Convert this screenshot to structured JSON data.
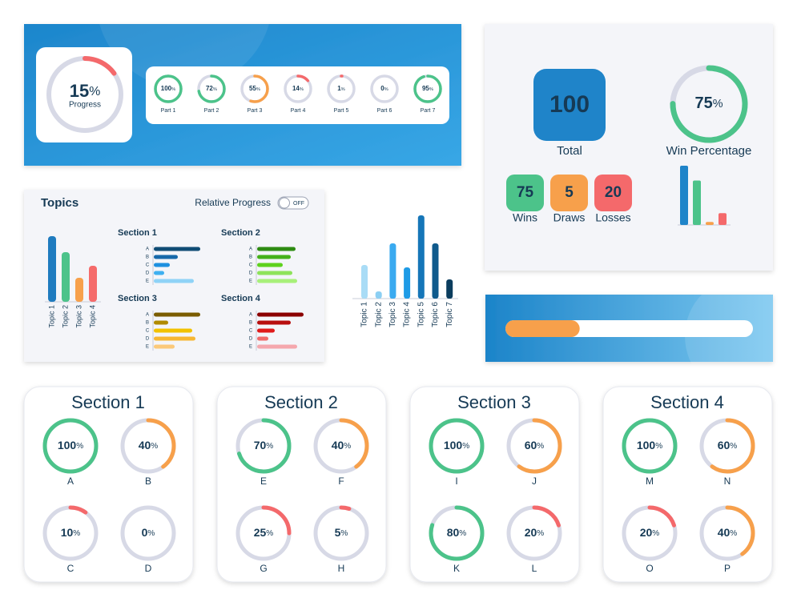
{
  "unit": "%",
  "progress_banner": {
    "overall": {
      "value": 15,
      "label": "Progress",
      "color": "#f4696b"
    },
    "parts": [
      {
        "label": "Part 1",
        "value": 100,
        "color": "#4cc38a"
      },
      {
        "label": "Part 2",
        "value": 72,
        "color": "#4cc38a"
      },
      {
        "label": "Part 3",
        "value": 55,
        "color": "#f7a04b"
      },
      {
        "label": "Part 4",
        "value": 14,
        "color": "#f4696b"
      },
      {
        "label": "Part 5",
        "value": 1,
        "color": "#f4696b"
      },
      {
        "label": "Part 6",
        "value": 0,
        "color": "#f4696b"
      },
      {
        "label": "Part 7",
        "value": 95,
        "color": "#4cc38a"
      }
    ]
  },
  "summary": {
    "total": {
      "value": 100,
      "label": "Total",
      "color": "#1f84c9"
    },
    "win_percentage": {
      "value": 75,
      "label": "Win Percentage",
      "color": "#4cc38a"
    },
    "results": [
      {
        "label": "Wins",
        "value": 75,
        "color": "#4cc38a"
      },
      {
        "label": "Draws",
        "value": 5,
        "color": "#f7a04b"
      },
      {
        "label": "Losses",
        "value": 20,
        "color": "#f4696b"
      }
    ]
  },
  "topics_panel": {
    "title": "Topics",
    "toggle_label": "Relative Progress",
    "toggle_state": "OFF",
    "topics": {
      "categories": [
        "Topic 1",
        "Topic 2",
        "Topic 3",
        "Topic 4"
      ],
      "values": [
        82,
        62,
        30,
        45
      ],
      "colors": [
        "#1f7bbf",
        "#4cc38a",
        "#f7a04b",
        "#f56b6b"
      ]
    },
    "sections": [
      {
        "title": "Section 1",
        "categories": [
          "A",
          "B",
          "C",
          "D",
          "E"
        ],
        "values": [
          58,
          30,
          20,
          13,
          50
        ],
        "colors": [
          "#0f4c75",
          "#1769aa",
          "#1e90e0",
          "#3fb0f0",
          "#8fd3f7"
        ]
      },
      {
        "title": "Section 2",
        "categories": [
          "A",
          "B",
          "C",
          "D",
          "E"
        ],
        "values": [
          48,
          42,
          32,
          44,
          50
        ],
        "colors": [
          "#2e8b12",
          "#45b21a",
          "#5fd21f",
          "#8ee35a",
          "#a8f07a"
        ]
      },
      {
        "title": "Section 3",
        "categories": [
          "A",
          "B",
          "C",
          "D",
          "E"
        ],
        "values": [
          58,
          18,
          48,
          52,
          26
        ],
        "colors": [
          "#7a5c00",
          "#b08a00",
          "#f2c200",
          "#f7b733",
          "#fbc97a"
        ]
      },
      {
        "title": "Section 4",
        "categories": [
          "A",
          "B",
          "C",
          "D",
          "E"
        ],
        "values": [
          58,
          42,
          22,
          14,
          50
        ],
        "colors": [
          "#8b0000",
          "#b80f0f",
          "#e01b1b",
          "#f06a6a",
          "#f5a7ad"
        ]
      }
    ]
  },
  "topic_chart": {
    "categories": [
      "Topic 1",
      "Topic 2",
      "Topic 3",
      "Topic 4",
      "Topic 5",
      "Topic 6",
      "Topic 7"
    ],
    "values": [
      42,
      9,
      69,
      39,
      104,
      69,
      24
    ],
    "colors": [
      "#a9dcf6",
      "#8ccff3",
      "#3aaaf0",
      "#1e9be6",
      "#1676b8",
      "#0f5a8c",
      "#0b3d5e"
    ]
  },
  "progress_bar": {
    "value": 30,
    "color": "#f7a04b"
  },
  "section_cards": [
    {
      "title": "Section 1",
      "items": [
        {
          "label": "A",
          "value": 100,
          "color": "#4cc38a"
        },
        {
          "label": "B",
          "value": 40,
          "color": "#f7a04b"
        },
        {
          "label": "C",
          "value": 10,
          "color": "#f4696b"
        },
        {
          "label": "D",
          "value": 0,
          "color": "#f4696b"
        }
      ]
    },
    {
      "title": "Section 2",
      "items": [
        {
          "label": "E",
          "value": 70,
          "color": "#4cc38a"
        },
        {
          "label": "F",
          "value": 40,
          "color": "#f7a04b"
        },
        {
          "label": "G",
          "value": 25,
          "color": "#f4696b"
        },
        {
          "label": "H",
          "value": 5,
          "color": "#f4696b"
        }
      ]
    },
    {
      "title": "Section 3",
      "items": [
        {
          "label": "I",
          "value": 100,
          "color": "#4cc38a"
        },
        {
          "label": "J",
          "value": 60,
          "color": "#f7a04b"
        },
        {
          "label": "K",
          "value": 80,
          "color": "#4cc38a"
        },
        {
          "label": "L",
          "value": 20,
          "color": "#f4696b"
        }
      ]
    },
    {
      "title": "Section 4",
      "items": [
        {
          "label": "M",
          "value": 100,
          "color": "#4cc38a"
        },
        {
          "label": "N",
          "value": 60,
          "color": "#f7a04b"
        },
        {
          "label": "O",
          "value": 20,
          "color": "#f4696b"
        },
        {
          "label": "P",
          "value": 40,
          "color": "#f7a04b"
        }
      ]
    }
  ]
}
